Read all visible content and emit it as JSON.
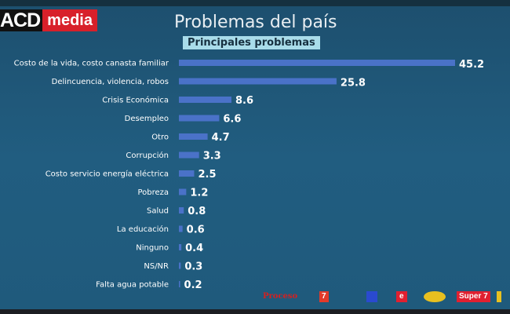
{
  "brand": {
    "acd": "ACD",
    "media": "media"
  },
  "chart_data": {
    "type": "bar",
    "orientation": "horizontal",
    "title": "Problemas del país",
    "subtitle": "Principales problemas",
    "categories": [
      "Costo de la vida, costo canasta familiar",
      "Delincuencia, violencia, robos",
      "Crisis Económica",
      "Desempleo",
      "Otro",
      "Corrupción",
      "Costo servicio energía eléctrica",
      "Pobreza",
      "Salud",
      "La educación",
      "Ninguno",
      "NS/NR",
      "Falta agua potable"
    ],
    "values": [
      45.2,
      25.8,
      8.6,
      6.6,
      4.7,
      3.3,
      2.5,
      1.2,
      0.8,
      0.6,
      0.4,
      0.3,
      0.2
    ],
    "xlim": [
      0,
      45.2
    ],
    "grid": false,
    "bar_color": "#4a72c8"
  },
  "logos": [
    "Proceso",
    "7",
    "e",
    "Super 7"
  ]
}
